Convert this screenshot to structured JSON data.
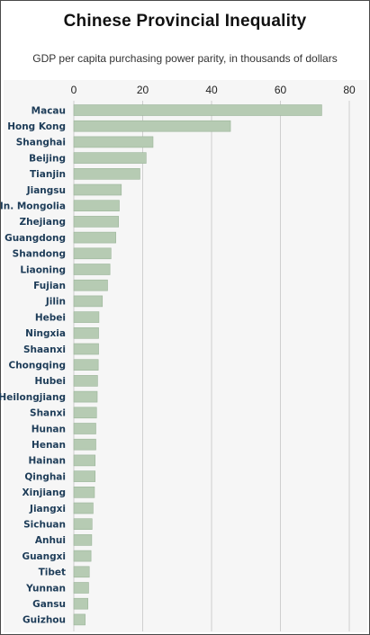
{
  "page": {
    "title": "Chinese Provincial Inequality",
    "subtitle": "GDP per capita purchasing power parity, in thousands of dollars"
  },
  "chart_data": {
    "type": "bar",
    "orientation": "horizontal",
    "title": "Chinese Provincial Inequality",
    "subtitle": "GDP per capita purchasing power parity, in thousands of dollars",
    "xlabel": "",
    "ylabel": "",
    "xlim": [
      0,
      80
    ],
    "xticks": [
      0,
      20,
      40,
      60,
      80
    ],
    "grid": true,
    "legend": "none",
    "bar_color": "#b6cbb3",
    "bar_edge_color": "#9cb59a",
    "categories": [
      "Macau",
      "Hong Kong",
      "Shanghai",
      "Beijing",
      "Tianjin",
      "Jiangsu",
      "In. Mongolia",
      "Zhejiang",
      "Guangdong",
      "Shandong",
      "Liaoning",
      "Fujian",
      "Jilin",
      "Hebei",
      "Ningxia",
      "Shaanxi",
      "Chongqing",
      "Hubei",
      "Heilongjiang",
      "Shanxi",
      "Hunan",
      "Henan",
      "Hainan",
      "Qinghai",
      "Xinjiang",
      "Jiangxi",
      "Sichuan",
      "Anhui",
      "Guangxi",
      "Tibet",
      "Yunnan",
      "Gansu",
      "Guizhou"
    ],
    "values": [
      72,
      45.5,
      23,
      21,
      19.2,
      13.8,
      13.2,
      13,
      12.2,
      10.8,
      10.5,
      9.8,
      8.3,
      7.3,
      7.2,
      7.2,
      7.1,
      6.9,
      6.8,
      6.6,
      6.4,
      6.4,
      6.2,
      6.2,
      6.0,
      5.6,
      5.3,
      5.2,
      5.0,
      4.5,
      4.3,
      4.1,
      3.3
    ]
  }
}
